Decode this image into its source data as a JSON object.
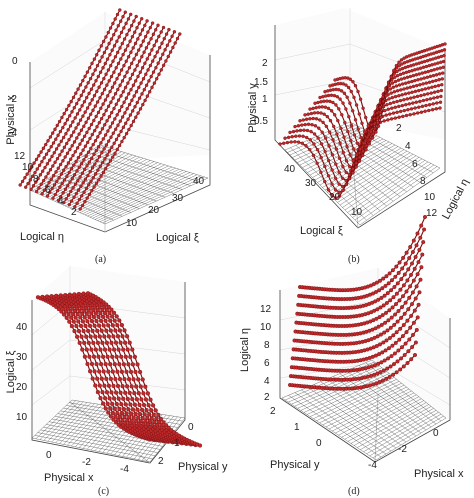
{
  "chart_data": [
    {
      "id": "a",
      "type": "scatter3d",
      "caption": "(a)",
      "zlabel": "Physical x",
      "xlabel": "Logical η",
      "ylabel": "Logical ξ",
      "z_ticks": [
        "0",
        "-2",
        "-4"
      ],
      "x_ticks": [
        "12",
        "10",
        "8",
        "6",
        "4",
        "2"
      ],
      "y_ticks": [
        "10",
        "20",
        "30",
        "40"
      ],
      "eta_range": [
        1,
        12
      ],
      "xi_range": [
        1,
        44
      ],
      "z_range": [
        -5,
        1.5
      ],
      "curve_count": 12,
      "points_per_curve": 44,
      "grid": true
    },
    {
      "id": "b",
      "type": "scatter3d",
      "caption": "(b)",
      "zlabel": "Physical y",
      "xlabel": "Logical ξ",
      "ylabel": "Logical η",
      "z_ticks": [
        "2",
        "1.5",
        "1",
        "0.5"
      ],
      "x_ticks": [
        "40",
        "30",
        "20",
        "10"
      ],
      "y_ticks": [
        "2",
        "4",
        "6",
        "8",
        "10",
        "12"
      ],
      "xi_range": [
        1,
        44
      ],
      "eta_range": [
        1,
        12
      ],
      "z_range": [
        0,
        2.2
      ],
      "curve_count": 12,
      "points_per_curve": 44,
      "grid": true
    },
    {
      "id": "c",
      "type": "scatter3d",
      "caption": "(c)",
      "zlabel": "Logical ξ",
      "xlabel": "Physical x",
      "ylabel": "Physical y",
      "z_ticks": [
        "40",
        "30",
        "20",
        "10"
      ],
      "x_ticks": [
        "0",
        "-2",
        "-4"
      ],
      "y_ticks": [
        "0",
        "1",
        "2"
      ],
      "x_range": [
        -5,
        1
      ],
      "y_range": [
        0,
        2.2
      ],
      "z_range": [
        1,
        44
      ],
      "curve_count": 12,
      "points_per_curve": 44,
      "grid": true
    },
    {
      "id": "d",
      "type": "scatter3d",
      "caption": "(d)",
      "zlabel": "Logical η",
      "xlabel": "Physical x",
      "ylabel": "Physical y",
      "z_ticks": [
        "12",
        "10",
        "8",
        "6",
        "4",
        "2"
      ],
      "x_ticks": [
        "0",
        "-2",
        "-4"
      ],
      "y_ticks": [
        "2",
        "1",
        "0"
      ],
      "x_range": [
        -5,
        1
      ],
      "y_range": [
        0,
        2.2
      ],
      "z_range": [
        1,
        12
      ],
      "curve_count": 12,
      "points_per_curve": 44,
      "grid": true
    }
  ]
}
